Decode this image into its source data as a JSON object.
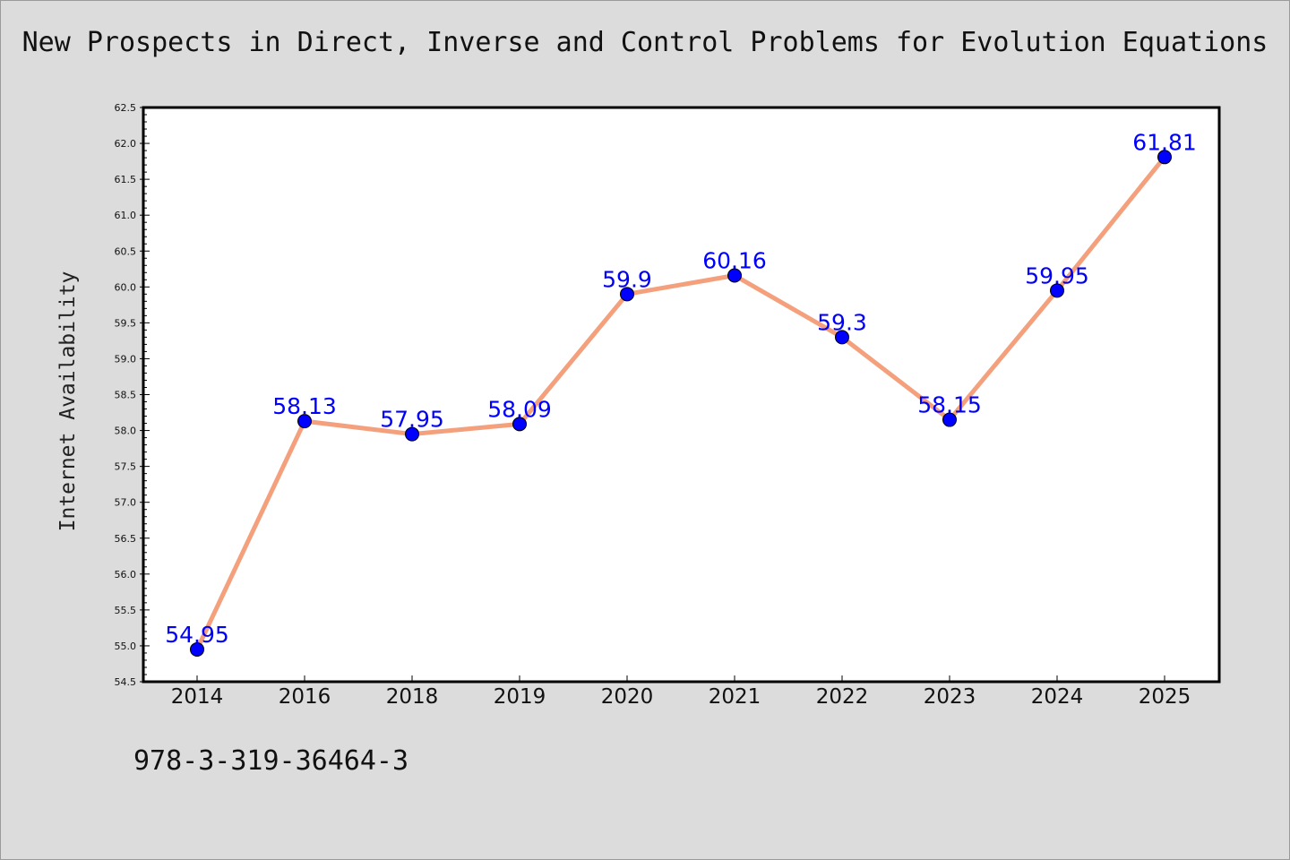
{
  "chart_data": {
    "type": "line",
    "title": "New Prospects in Direct, Inverse and Control Problems for Evolution Equations",
    "xlabel": "",
    "ylabel": "Internet Availability",
    "categories": [
      "2014",
      "2016",
      "2018",
      "2019",
      "2020",
      "2021",
      "2022",
      "2023",
      "2024",
      "2025"
    ],
    "series": [
      {
        "values": [
          54.95,
          58.13,
          57.95,
          58.09,
          59.9,
          60.16,
          59.3,
          58.15,
          59.95,
          61.81
        ],
        "labels": [
          "54.95",
          "58.13",
          "57.95",
          "58.09",
          "59.9",
          "60.16",
          "59.3",
          "58.15",
          "59.95",
          "61.81"
        ]
      }
    ],
    "ylim": [
      54.5,
      62.5
    ],
    "yticks": [
      "54.5",
      "55.0",
      "55.5",
      "56.0",
      "56.5",
      "57.0",
      "57.5",
      "58.0",
      "58.5",
      "59.0",
      "59.5",
      "60.0",
      "60.5",
      "61.0",
      "61.5",
      "62.0",
      "62.5"
    ],
    "grid": false,
    "legend": "none",
    "line_color": "#f4a07c",
    "marker_color": "#0000ff",
    "label_color": "#0000ff"
  },
  "footer": {
    "isbn": "978-3-319-36464-3"
  },
  "colors": {
    "background": "#dcdcdc",
    "plot_background": "#ffffff"
  }
}
